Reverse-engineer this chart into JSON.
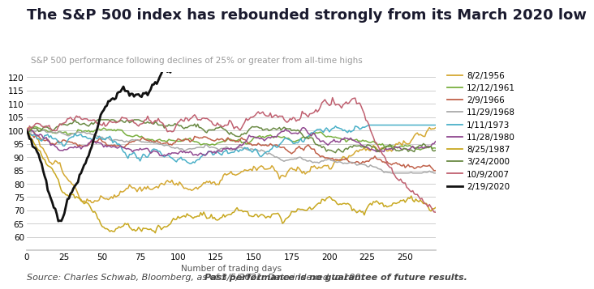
{
  "title": "The S&P 500 index has rebounded strongly from its March 2020 low",
  "subtitle": "S&P 500 performance following declines of 25% or greater from all-time highs",
  "xlabel": "Number of trading days",
  "source_normal": "Source: Charles Schwab, Bloomberg, as of 3/5/2021. Data indexed to 100. ",
  "source_bold": "Past performance is no guarantee of future results.",
  "xlim": [
    0,
    270
  ],
  "ylim": [
    55,
    122
  ],
  "yticks": [
    60,
    65,
    70,
    75,
    80,
    85,
    90,
    95,
    100,
    105,
    110,
    115,
    120
  ],
  "xticks": [
    0,
    25,
    50,
    75,
    100,
    125,
    150,
    175,
    200,
    225,
    250
  ],
  "series": [
    {
      "label": "8/2/1956",
      "color": "#d4a832",
      "lw": 1.1,
      "zorder": 2
    },
    {
      "label": "12/12/1961",
      "color": "#7ab040",
      "lw": 1.1,
      "zorder": 2
    },
    {
      "label": "2/9/1966",
      "color": "#c0614a",
      "lw": 1.1,
      "zorder": 2
    },
    {
      "label": "11/29/1968",
      "color": "#aaaaaa",
      "lw": 1.1,
      "zorder": 2
    },
    {
      "label": "1/11/1973",
      "color": "#4ab0c8",
      "lw": 1.1,
      "zorder": 2
    },
    {
      "label": "11/28/1980",
      "color": "#904890",
      "lw": 1.1,
      "zorder": 2
    },
    {
      "label": "8/25/1987",
      "color": "#c8a820",
      "lw": 1.1,
      "zorder": 2
    },
    {
      "label": "3/24/2000",
      "color": "#6a8a44",
      "lw": 1.1,
      "zorder": 2
    },
    {
      "label": "10/9/2007",
      "color": "#c06070",
      "lw": 1.1,
      "zorder": 2
    },
    {
      "label": "2/19/2020",
      "color": "#111111",
      "lw": 2.0,
      "zorder": 5
    }
  ],
  "title_fontsize": 13,
  "subtitle_fontsize": 7.5,
  "tick_fontsize": 7.5,
  "source_fontsize": 8,
  "legend_fontsize": 7.5,
  "bg_color": "#ffffff",
  "grid_color": "#c8c8c8"
}
